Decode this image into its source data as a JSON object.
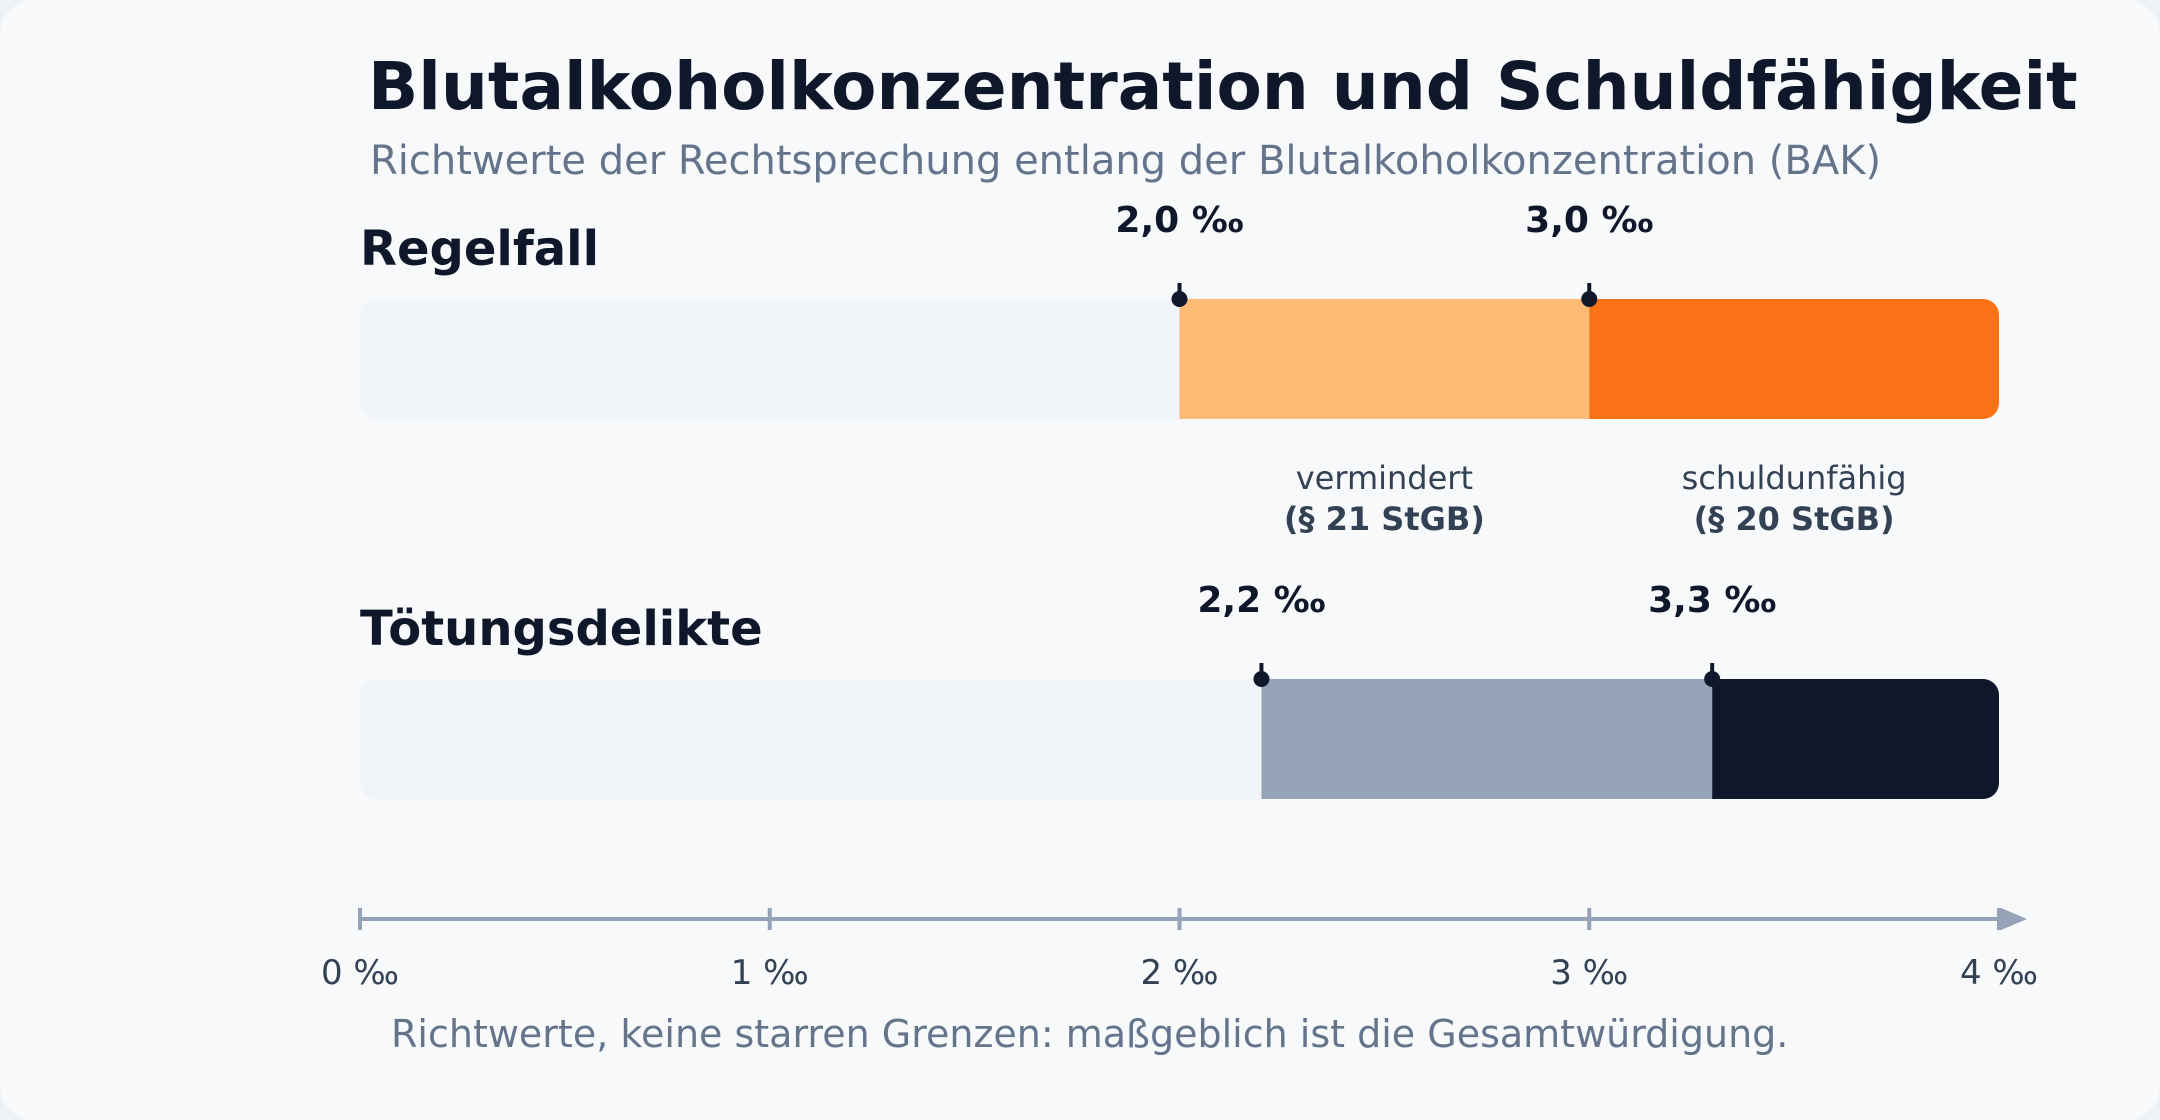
{
  "title": "Blutalkoholkonzentration und Schuldfähigkeit",
  "subtitle": "Richtwerte der Rechtsprechung entlang der Blutalkoholkonzentration (BAK)",
  "footnote": "Richtwerte, keine starren Grenzen: maßgeblich ist die Gesamtwürdigung.",
  "chart_data": {
    "type": "bar",
    "orientation": "horizontal",
    "stacked_ranges": true,
    "xlim": [
      0,
      4
    ],
    "unit": "‰",
    "x_ticks": [
      0,
      1,
      2,
      3,
      4
    ],
    "x_tick_labels": [
      "0 ‰",
      "1 ‰",
      "2 ‰",
      "3 ‰",
      "4 ‰"
    ],
    "rows": [
      {
        "name": "Regelfall",
        "thresholds": [
          {
            "value": 2.0,
            "label": "2,0 ‰"
          },
          {
            "value": 3.0,
            "label": "3,0 ‰"
          }
        ],
        "segments": [
          {
            "from": 0,
            "to": 2.0,
            "color": "#f1f4f8"
          },
          {
            "from": 2.0,
            "to": 3.0,
            "color": "#fdba74"
          },
          {
            "from": 3.0,
            "to": 4.0,
            "color": "#f97316"
          }
        ]
      },
      {
        "name": "Tötungsdelikte",
        "thresholds": [
          {
            "value": 2.2,
            "label": "2,2 ‰"
          },
          {
            "value": 3.3,
            "label": "3,3 ‰"
          }
        ],
        "segments": [
          {
            "from": 0,
            "to": 2.2,
            "color": "#f1f4f8"
          },
          {
            "from": 2.2,
            "to": 3.3,
            "color": "#94a3b8"
          },
          {
            "from": 3.3,
            "to": 4.0,
            "color": "#0f172a"
          }
        ]
      }
    ],
    "annotations": [
      {
        "center": 2.5,
        "line1": "vermindert",
        "line2": "(§ 21 StGB)"
      },
      {
        "center": 3.5,
        "line1": "schuldunfähig",
        "line2": "(§ 20 StGB)"
      }
    ],
    "colors": {
      "axis": "#94a3b8",
      "marker": "#0f172a",
      "text": "#0f172a",
      "muted": "#334155"
    }
  }
}
